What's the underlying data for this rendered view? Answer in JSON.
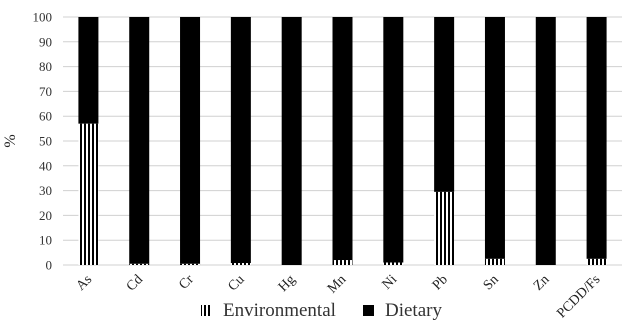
{
  "chart_data": {
    "type": "bar",
    "stacked": true,
    "categories": [
      "As",
      "Cd",
      "Cr",
      "Cu",
      "Hg",
      "Mn",
      "Ni",
      "Pb",
      "Sn",
      "Zn",
      "PCDD/Fs"
    ],
    "series": [
      {
        "name": "Environmental",
        "values": [
          57,
          0.5,
          0.5,
          0.8,
          0,
          2,
          1,
          29.5,
          2.5,
          0,
          2.5
        ]
      },
      {
        "name": "Dietary",
        "values": [
          43,
          99.5,
          99.5,
          99.2,
          100,
          98,
          99,
          70.5,
          97.5,
          100,
          97.5
        ]
      }
    ],
    "ylabel": "%",
    "ylim": [
      0,
      100
    ],
    "yticks": [
      0,
      10,
      20,
      30,
      40,
      50,
      60,
      70,
      80,
      90,
      100
    ],
    "grid": true,
    "legend": "bottom",
    "colors": {
      "dietary": "#000000",
      "environmental_stripe": "#000000",
      "environmental_bg": "#ffffff",
      "grid": "#d0d0d0"
    }
  }
}
